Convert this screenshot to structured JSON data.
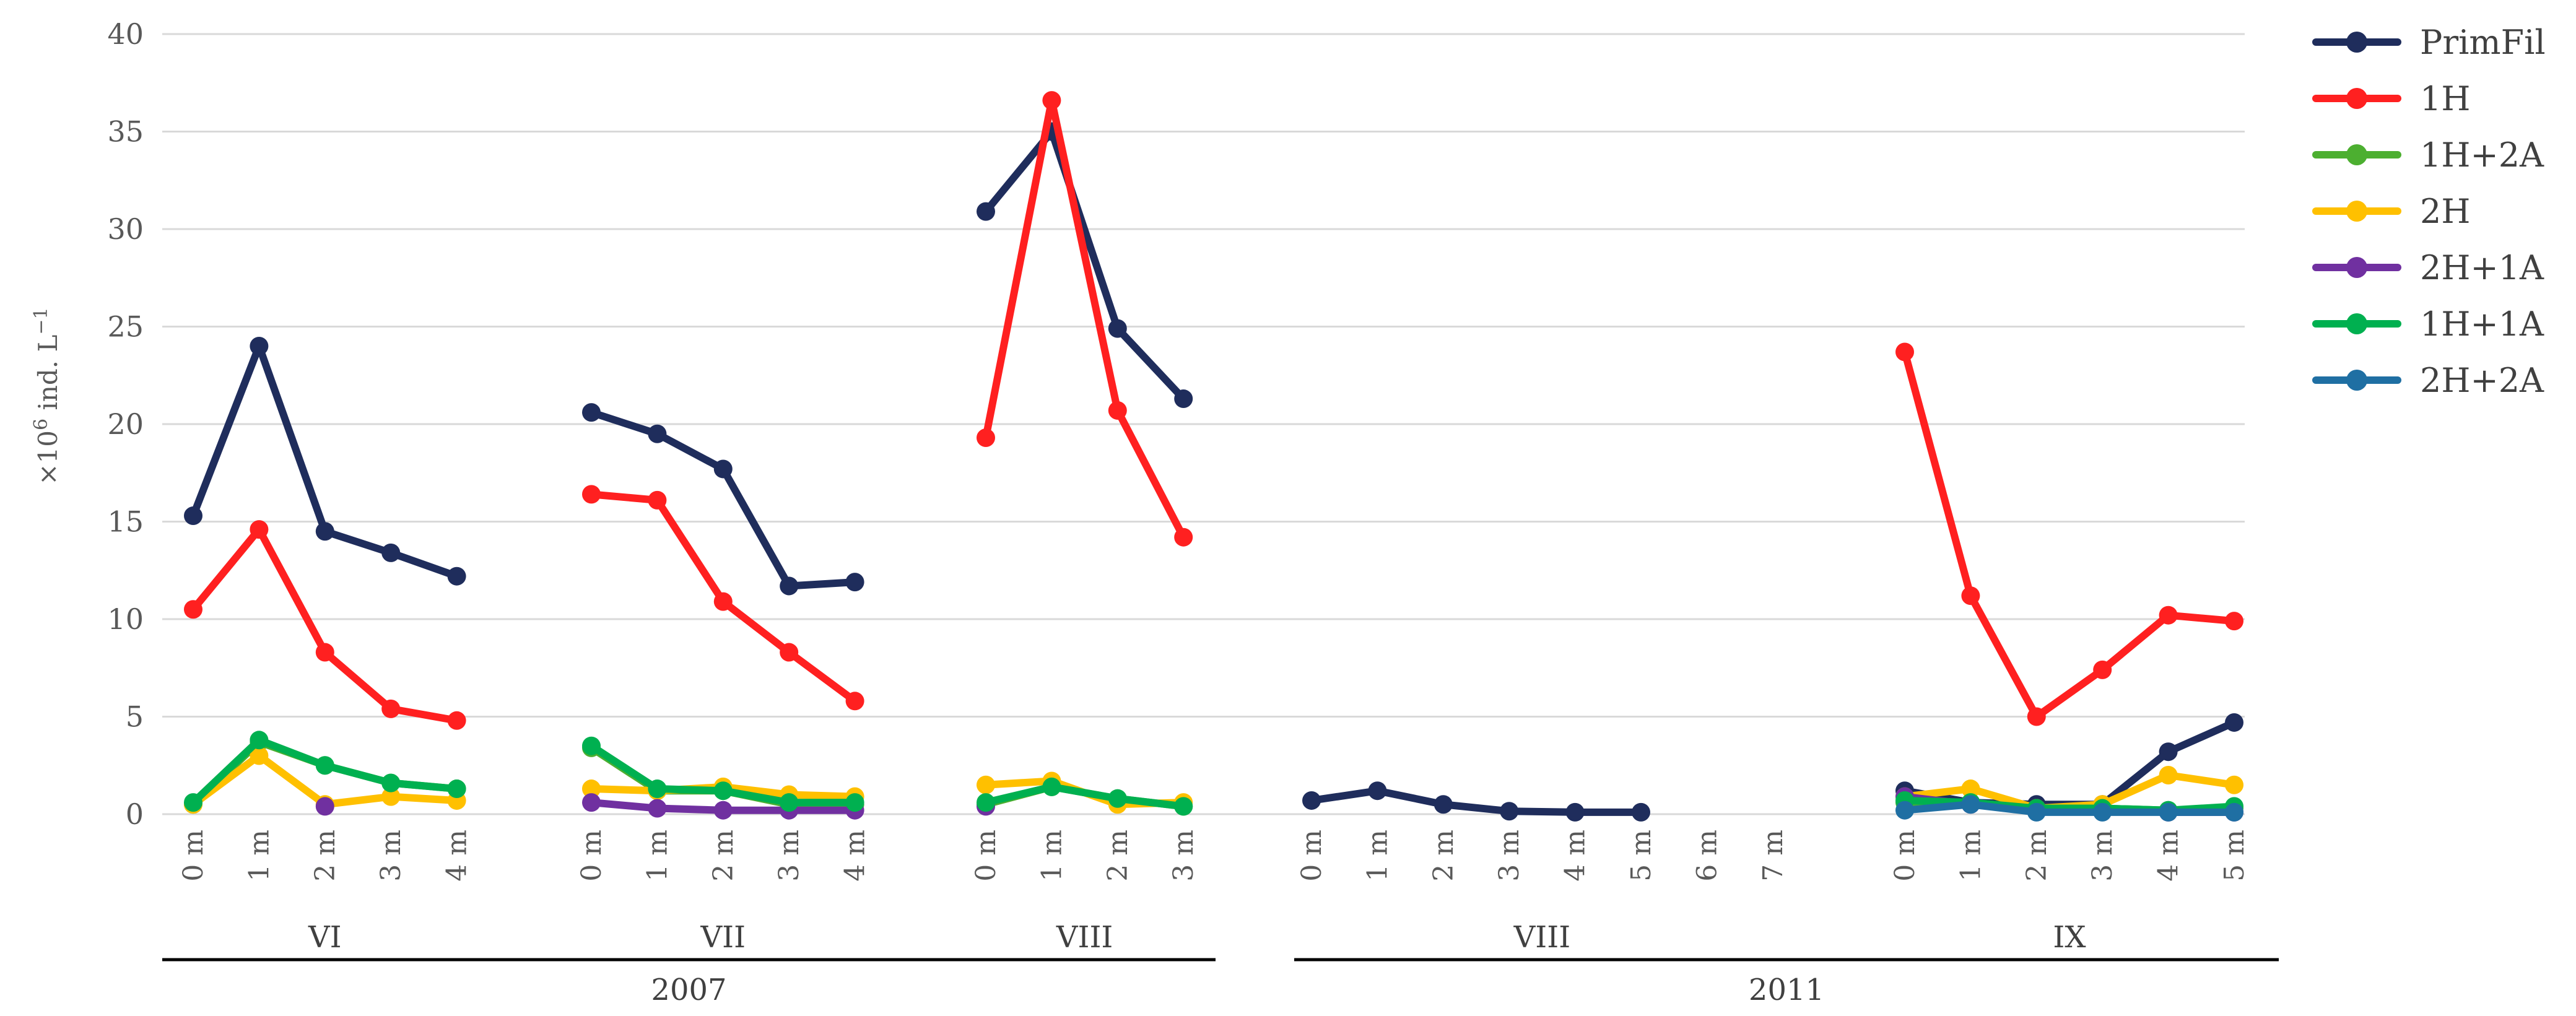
{
  "chart_data": {
    "type": "line",
    "title": "",
    "ylabel": "×10⁶ ind. L⁻¹",
    "ylabel_parts": {
      "base": "×10",
      "exp": "6",
      "unit": " ind. L",
      "unit_exp": "−1"
    },
    "ylim": [
      0,
      40
    ],
    "yticks": [
      "0",
      "5",
      "10",
      "15",
      "20",
      "25",
      "30",
      "35",
      "40"
    ],
    "grid": true,
    "legend_position": "right",
    "groups": [
      {
        "month": "VI",
        "year": "2007",
        "categories": [
          "0 m",
          "1 m",
          "2 m",
          "3 m",
          "4 m"
        ]
      },
      {
        "month": "VII",
        "year": "2007",
        "categories": [
          "0 m",
          "1 m",
          "2 m",
          "3 m",
          "4 m"
        ]
      },
      {
        "month": "VIII",
        "year": "2007",
        "categories": [
          "0 m",
          "1 m",
          "2 m",
          "3 m"
        ]
      },
      {
        "month": "VIII",
        "year": "2011",
        "categories": [
          "0 m",
          "1 m",
          "2 m",
          "3 m",
          "4 m",
          "5 m",
          "6 m",
          "7 m"
        ]
      },
      {
        "month": "IX",
        "year": "2011",
        "categories": [
          "0 m",
          "1 m",
          "2 m",
          "3 m",
          "4 m",
          "5 m"
        ]
      }
    ],
    "years": [
      {
        "label": "2007",
        "groups": [
          0,
          1,
          2
        ]
      },
      {
        "label": "2011",
        "groups": [
          3,
          4
        ]
      }
    ],
    "series": [
      {
        "name": "PrimFil",
        "color": "#1f2d5c",
        "values": [
          [
            15.3,
            24,
            14.5,
            13.4,
            12.2
          ],
          [
            20.6,
            19.5,
            17.7,
            11.7,
            11.9
          ],
          [
            30.9,
            35,
            24.9,
            21.3
          ],
          [
            0.7,
            1.2,
            0.5,
            0.15,
            0.1,
            0.1,
            null,
            null
          ],
          [
            1.2,
            0.6,
            0.5,
            0.5,
            3.2,
            4.7
          ]
        ]
      },
      {
        "name": "1H",
        "color": "#ff2020",
        "values": [
          [
            10.5,
            14.6,
            8.3,
            5.4,
            4.8
          ],
          [
            16.4,
            16.1,
            10.9,
            8.3,
            5.8
          ],
          [
            19.3,
            36.6,
            20.7,
            14.2
          ],
          [
            null,
            null,
            null,
            null,
            null,
            null,
            null,
            null
          ],
          [
            23.7,
            11.2,
            5,
            7.4,
            10.2,
            9.9
          ]
        ]
      },
      {
        "name": "1H+2A",
        "color": "#4caf30",
        "values": [
          [
            0.5,
            3.7,
            2.5,
            1.6,
            1.3
          ],
          [
            3.4,
            1.2,
            1.2,
            0.5,
            0.5
          ],
          [
            0.5,
            1.4,
            0.8,
            0.4
          ],
          [
            null,
            null,
            null,
            null,
            null,
            null,
            null,
            null
          ],
          [
            0.6,
            0.6,
            0.3,
            0.3,
            0.2,
            0.3
          ]
        ]
      },
      {
        "name": "2H",
        "color": "#ffc000",
        "values": [
          [
            0.5,
            3,
            0.5,
            0.9,
            0.7
          ],
          [
            1.3,
            1.2,
            1.4,
            1,
            0.9
          ],
          [
            1.5,
            1.7,
            0.5,
            0.6
          ],
          [
            null,
            null,
            null,
            null,
            null,
            null,
            null,
            null
          ],
          [
            0.9,
            1.3,
            0.3,
            0.5,
            2,
            1.5
          ]
        ]
      },
      {
        "name": "2H+1A",
        "color": "#7030a0",
        "values": [
          [
            null,
            null,
            0.4,
            null,
            null
          ],
          [
            0.6,
            0.3,
            0.2,
            0.2,
            0.2
          ],
          [
            0.4,
            null,
            null,
            null
          ],
          [
            null,
            null,
            null,
            null,
            null,
            null,
            null,
            null
          ],
          [
            0.9,
            0.5,
            0.2,
            0.2,
            0.1,
            0.1
          ]
        ]
      },
      {
        "name": "1H+1A",
        "color": "#00b050",
        "values": [
          [
            0.6,
            3.8,
            2.5,
            1.6,
            1.3
          ],
          [
            3.5,
            1.3,
            1.2,
            0.6,
            0.6
          ],
          [
            0.6,
            1.4,
            0.8,
            0.4
          ],
          [
            null,
            null,
            null,
            null,
            null,
            null,
            null,
            null
          ],
          [
            0.7,
            0.6,
            0.3,
            0.3,
            0.2,
            0.4
          ]
        ]
      },
      {
        "name": "2H+2A",
        "color": "#1f6fa3",
        "values": [
          [
            null,
            null,
            null,
            null,
            null
          ],
          [
            null,
            null,
            null,
            null,
            null
          ],
          [
            null,
            null,
            null,
            null
          ],
          [
            null,
            null,
            null,
            null,
            null,
            null,
            null,
            null
          ],
          [
            0.2,
            0.5,
            0.1,
            0.1,
            0.1,
            0.1
          ]
        ]
      }
    ]
  }
}
